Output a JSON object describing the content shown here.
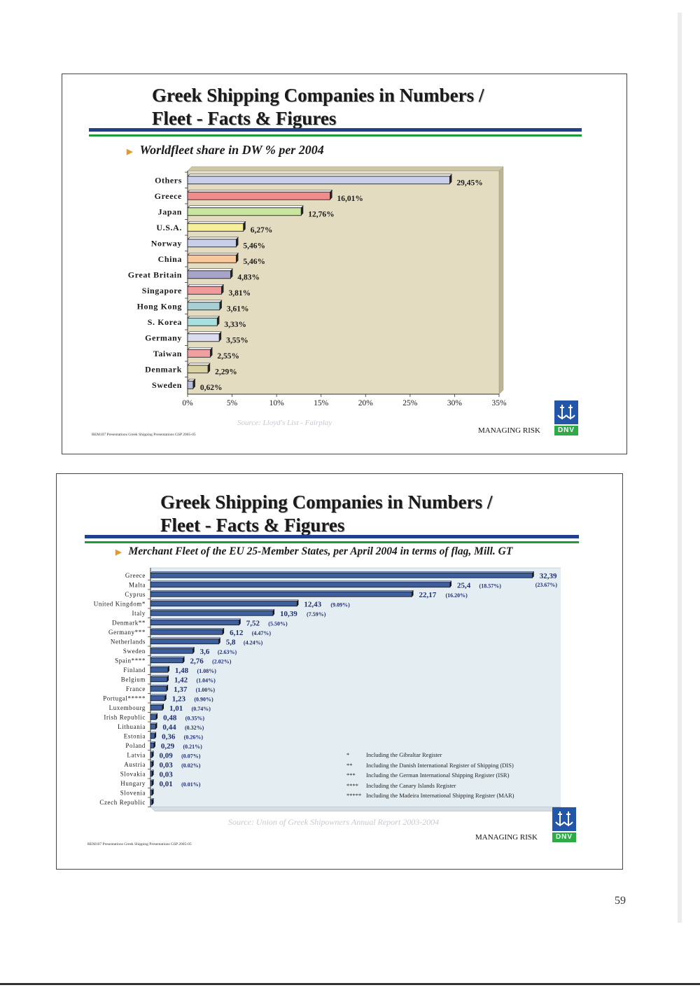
{
  "page_number": "59",
  "slides": [
    {
      "title_line1": "Greek Shipping Companies in Numbers /",
      "title_line2": "Fleet - Facts & Figures",
      "bullet": "Worldfleet share in DW % per 2004",
      "source": "Source: Lloyd's List - Fairplay",
      "footer_left": "REM107 Presentations Greek Shipping Presentations GSP 2005-05",
      "managing_risk": "MANAGING RISK",
      "logo_text": "DNV"
    },
    {
      "title_line1": "Greek Shipping Companies in Numbers /",
      "title_line2": "Fleet - Facts & Figures",
      "bullet": "Merchant Fleet of the EU 25-Member States, per April 2004  in terms of flag, Mill. GT",
      "source": "Source: Union of Greek Shipowners Annual Report 2003-2004",
      "footer_left": "REM107 Presentations Greek Shipping Presentations GSP 2005-05",
      "managing_risk": "MANAGING RISK",
      "logo_text": "DNV",
      "footnotes": [
        {
          "mark": "*",
          "text": "Including the Gibraltar Register"
        },
        {
          "mark": "**",
          "text": "Including the Danish International Register of Shipping (DIS)"
        },
        {
          "mark": "***",
          "text": "Including the German International Shipping Register (ISR)"
        },
        {
          "mark": "****",
          "text": "Including the Canary Islands Register"
        },
        {
          "mark": "*****",
          "text": "Including the Madeira International Shipping Register (MAR)"
        }
      ]
    }
  ],
  "chart_data": [
    {
      "type": "bar",
      "orientation": "horizontal",
      "categories": [
        "Others",
        "Greece",
        "Japan",
        "U.S.A.",
        "Norway",
        "China",
        "Great Britain",
        "Singapore",
        "Hong Kong",
        "S. Korea",
        "Germany",
        "Taiwan",
        "Denmark",
        "Sweden"
      ],
      "values": [
        29.45,
        16.01,
        12.76,
        6.27,
        5.46,
        5.46,
        4.83,
        3.81,
        3.61,
        3.33,
        3.55,
        2.55,
        2.29,
        0.62
      ],
      "data_labels": [
        "29,45%",
        "16,01%",
        "12,76%",
        "6,27%",
        "5,46%",
        "5,46%",
        "4,83%",
        "3,81%",
        "3,61%",
        "3,33%",
        "3,55%",
        "2,55%",
        "2,29%",
        "0,62%"
      ],
      "xlim": [
        0,
        35
      ],
      "x_ticks": [
        "0%",
        "5%",
        "10%",
        "15%",
        "20%",
        "25%",
        "30%",
        "35%"
      ],
      "colors": [
        "#c9cfe8",
        "#f08c8c",
        "#c8e6a0",
        "#f6f09a",
        "#c9cfe8",
        "#f8c89a",
        "#a8a4c8",
        "#f09a9a",
        "#a8d0d4",
        "#a8e0e0",
        "#dcdcf0",
        "#f0a0a0",
        "#d8d0a0",
        "#b8c0dc"
      ],
      "background": "#e4dcc0"
    },
    {
      "type": "bar",
      "orientation": "horizontal",
      "categories": [
        "Greece",
        "Malta",
        "Cyprus",
        "United Kingdom*",
        "Italy",
        "Denmark**",
        "Germany***",
        "Netherlands",
        "Sweden",
        "Spain****",
        "Finland",
        "Belgium",
        "France",
        "Portugal*****",
        "Luxembourg",
        "Irish Republic",
        "Lithuania",
        "Estonia",
        "Poland",
        "Latvia",
        "Austria",
        "Slovakia",
        "Hungary",
        "Slovenia",
        "Czech Republic"
      ],
      "values": [
        32.39,
        25.4,
        22.17,
        12.43,
        10.39,
        7.52,
        6.12,
        5.8,
        3.6,
        2.76,
        1.48,
        1.42,
        1.37,
        1.23,
        1.01,
        0.48,
        0.44,
        0.36,
        0.29,
        0.09,
        0.03,
        0.03,
        0.01,
        0.0,
        0.0
      ],
      "value_labels": [
        "32,39",
        "25,4",
        "22,17",
        "12,43",
        "10,39",
        "7,52",
        "6,12",
        "5,8",
        "3,6",
        "2,76",
        "1,48",
        "1,42",
        "1,37",
        "1,23",
        "1,01",
        "0,48",
        "0,44",
        "0,36",
        "0,29",
        "0,09",
        "0,03",
        "0,03",
        "0,01",
        "",
        ""
      ],
      "share_labels": [
        "(23.67%)",
        "(18.57%)",
        "(16.20%)",
        "(9.09%)",
        "(7.59%)",
        "(5.50%)",
        "(4.47%)",
        "(4.24%)",
        "(2.63%)",
        "(2.02%)",
        "(1.08%)",
        "(1.04%)",
        "(1.00%)",
        "(0.90%)",
        "(0.74%)",
        "(0.35%)",
        "(0.32%)",
        "(0.26%)",
        "(0.21%)",
        "(0.07%)",
        "(0.02%)",
        "",
        "(0.01%)",
        "",
        ""
      ],
      "xlim": [
        0,
        33
      ],
      "colors": {
        "bar": "#3d5f9e",
        "label": "#1f2f6e",
        "background": "#e4eef2"
      }
    }
  ]
}
